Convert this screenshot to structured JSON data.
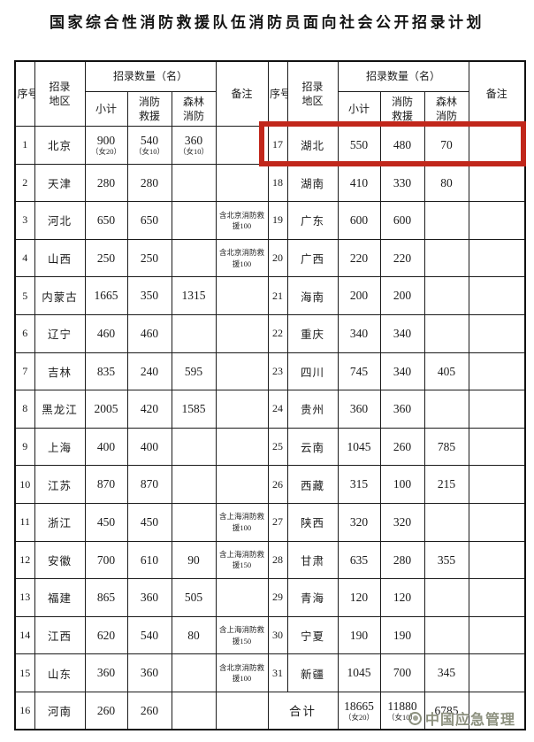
{
  "title": "国家综合性消防救援队伍消防员面向社会公开招录计划",
  "table": {
    "headers": {
      "seq": "序号",
      "region": "招录地区",
      "quantity_group": "招录数量（名）",
      "subtotal": "小计",
      "fire_rescue": "消防救援",
      "forest_fire": "森林消防",
      "remarks": "备注"
    },
    "left_rows": [
      {
        "seq": "1",
        "region": "北京",
        "subtotal": "900",
        "subtotal_note": "（女20）",
        "fire_rescue": "540",
        "fire_rescue_note": "（女10）",
        "forest_fire": "360",
        "forest_fire_note": "（女10）",
        "remarks": ""
      },
      {
        "seq": "2",
        "region": "天津",
        "subtotal": "280",
        "fire_rescue": "280",
        "forest_fire": "",
        "remarks": ""
      },
      {
        "seq": "3",
        "region": "河北",
        "subtotal": "650",
        "fire_rescue": "650",
        "forest_fire": "",
        "remarks": "含北京消防救援100"
      },
      {
        "seq": "4",
        "region": "山西",
        "subtotal": "250",
        "fire_rescue": "250",
        "forest_fire": "",
        "remarks": "含北京消防救援100"
      },
      {
        "seq": "5",
        "region": "内蒙古",
        "subtotal": "1665",
        "fire_rescue": "350",
        "forest_fire": "1315",
        "remarks": ""
      },
      {
        "seq": "6",
        "region": "辽宁",
        "subtotal": "460",
        "fire_rescue": "460",
        "forest_fire": "",
        "remarks": ""
      },
      {
        "seq": "7",
        "region": "吉林",
        "subtotal": "835",
        "fire_rescue": "240",
        "forest_fire": "595",
        "remarks": ""
      },
      {
        "seq": "8",
        "region": "黑龙江",
        "subtotal": "2005",
        "fire_rescue": "420",
        "forest_fire": "1585",
        "remarks": ""
      },
      {
        "seq": "9",
        "region": "上海",
        "subtotal": "400",
        "fire_rescue": "400",
        "forest_fire": "",
        "remarks": ""
      },
      {
        "seq": "10",
        "region": "江苏",
        "subtotal": "870",
        "fire_rescue": "870",
        "forest_fire": "",
        "remarks": ""
      },
      {
        "seq": "11",
        "region": "浙江",
        "subtotal": "450",
        "fire_rescue": "450",
        "forest_fire": "",
        "remarks": "含上海消防救援100"
      },
      {
        "seq": "12",
        "region": "安徽",
        "subtotal": "700",
        "fire_rescue": "610",
        "forest_fire": "90",
        "remarks": "含上海消防救援150"
      },
      {
        "seq": "13",
        "region": "福建",
        "subtotal": "865",
        "fire_rescue": "360",
        "forest_fire": "505",
        "remarks": ""
      },
      {
        "seq": "14",
        "region": "江西",
        "subtotal": "620",
        "fire_rescue": "540",
        "forest_fire": "80",
        "remarks": "含上海消防救援150"
      },
      {
        "seq": "15",
        "region": "山东",
        "subtotal": "360",
        "fire_rescue": "360",
        "forest_fire": "",
        "remarks": "含北京消防救援100"
      },
      {
        "seq": "16",
        "region": "河南",
        "subtotal": "260",
        "fire_rescue": "260",
        "forest_fire": "",
        "remarks": ""
      }
    ],
    "right_rows": [
      {
        "seq": "17",
        "region": "湖北",
        "subtotal": "550",
        "fire_rescue": "480",
        "forest_fire": "70",
        "remarks": ""
      },
      {
        "seq": "18",
        "region": "湖南",
        "subtotal": "410",
        "fire_rescue": "330",
        "forest_fire": "80",
        "remarks": ""
      },
      {
        "seq": "19",
        "region": "广东",
        "subtotal": "600",
        "fire_rescue": "600",
        "forest_fire": "",
        "remarks": ""
      },
      {
        "seq": "20",
        "region": "广西",
        "subtotal": "220",
        "fire_rescue": "220",
        "forest_fire": "",
        "remarks": ""
      },
      {
        "seq": "21",
        "region": "海南",
        "subtotal": "200",
        "fire_rescue": "200",
        "forest_fire": "",
        "remarks": ""
      },
      {
        "seq": "22",
        "region": "重庆",
        "subtotal": "340",
        "fire_rescue": "340",
        "forest_fire": "",
        "remarks": ""
      },
      {
        "seq": "23",
        "region": "四川",
        "subtotal": "745",
        "fire_rescue": "340",
        "forest_fire": "405",
        "remarks": ""
      },
      {
        "seq": "24",
        "region": "贵州",
        "subtotal": "360",
        "fire_rescue": "360",
        "forest_fire": "",
        "remarks": ""
      },
      {
        "seq": "25",
        "region": "云南",
        "subtotal": "1045",
        "fire_rescue": "260",
        "forest_fire": "785",
        "remarks": ""
      },
      {
        "seq": "26",
        "region": "西藏",
        "subtotal": "315",
        "fire_rescue": "100",
        "forest_fire": "215",
        "remarks": ""
      },
      {
        "seq": "27",
        "region": "陕西",
        "subtotal": "320",
        "fire_rescue": "320",
        "forest_fire": "",
        "remarks": ""
      },
      {
        "seq": "28",
        "region": "甘肃",
        "subtotal": "635",
        "fire_rescue": "280",
        "forest_fire": "355",
        "remarks": ""
      },
      {
        "seq": "29",
        "region": "青海",
        "subtotal": "120",
        "fire_rescue": "120",
        "forest_fire": "",
        "remarks": ""
      },
      {
        "seq": "30",
        "region": "宁夏",
        "subtotal": "190",
        "fire_rescue": "190",
        "forest_fire": "",
        "remarks": ""
      },
      {
        "seq": "31",
        "region": "新疆",
        "subtotal": "1045",
        "fire_rescue": "700",
        "forest_fire": "345",
        "remarks": ""
      },
      {
        "type": "total",
        "label": "合计",
        "subtotal": "18665",
        "subtotal_note": "（女20）",
        "fire_rescue": "11880",
        "fire_rescue_note": "（女10）",
        "forest_fire": "6785",
        "remarks": ""
      }
    ]
  },
  "highlight": {
    "highlighted_row_seq": "17",
    "highlighted_region": "湖北",
    "color": "#c1271b"
  },
  "watermark": {
    "text": "中国应急管理"
  }
}
